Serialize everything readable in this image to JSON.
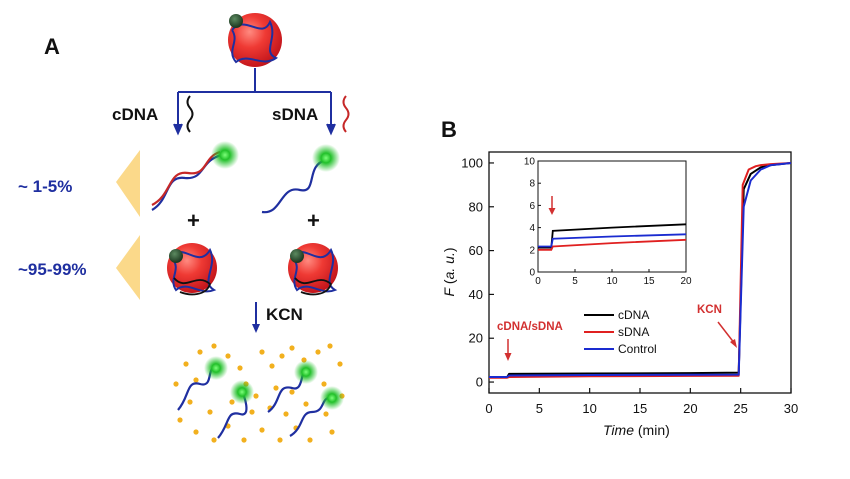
{
  "panel_a": {
    "letter": "A",
    "branch_left": "cDNA",
    "branch_right": "sDNA",
    "pct_top": "~ 1-5%",
    "pct_bottom": "~95-99%",
    "plus": "+",
    "kcn": "KCN",
    "colors": {
      "nanoparticle": "#e8242c",
      "dna_blue": "#1f2fa0",
      "dna_red": "#c62828",
      "fluor": "#22c02a",
      "quencher": "#2f5a34",
      "dots": "#f2b01e",
      "wedge": "#fbd98a"
    }
  },
  "panel_b": {
    "letter": "B",
    "annot_left": "cDNA/sDNA",
    "annot_right": "KCN",
    "legend": [
      "cDNA",
      "sDNA",
      "Control"
    ],
    "inset_x_ticks": [
      "0",
      "5",
      "10",
      "15",
      "20"
    ],
    "inset_y_ticks": [
      "0",
      "2",
      "4",
      "6",
      "8",
      "10"
    ]
  },
  "chart_data": {
    "type": "line",
    "xlabel": "Time (min)",
    "ylabel": "F (a. u.)",
    "xlim": [
      0,
      30
    ],
    "ylim": [
      -5,
      105
    ],
    "x_ticks": [
      "0",
      "5",
      "10",
      "15",
      "20",
      "25",
      "30"
    ],
    "y_ticks": [
      "0",
      "20",
      "40",
      "60",
      "80",
      "100"
    ],
    "legend_position": "bottom-left of inner area",
    "series": [
      {
        "name": "cDNA",
        "color": "#000000",
        "x": [
          0,
          1.8,
          2,
          10,
          20,
          24.8,
          25.3,
          26,
          27,
          28,
          30
        ],
        "y": [
          2.2,
          2.2,
          3.7,
          3.9,
          4.1,
          4.3,
          88,
          95,
          98,
          99,
          100
        ]
      },
      {
        "name": "sDNA",
        "color": "#e02020",
        "x": [
          0,
          1.8,
          2,
          10,
          20,
          24.8,
          25.2,
          25.8,
          26.5,
          27,
          28,
          30
        ],
        "y": [
          2.0,
          2.0,
          2.3,
          2.6,
          2.8,
          2.9,
          90,
          97,
          98.5,
          99,
          99.5,
          100
        ]
      },
      {
        "name": "Control",
        "color": "#1a2bd0",
        "x": [
          0,
          1.8,
          2,
          10,
          20,
          24.8,
          25.3,
          26,
          27,
          28,
          30
        ],
        "y": [
          2.3,
          2.3,
          3.0,
          3.2,
          3.3,
          3.4,
          80,
          92,
          97,
          99,
          100
        ]
      }
    ],
    "inset": {
      "xlim": [
        0,
        20
      ],
      "ylim": [
        0,
        10
      ],
      "series": [
        {
          "name": "cDNA",
          "x": [
            0,
            1.8,
            2,
            10,
            20
          ],
          "y": [
            2.2,
            2.2,
            3.7,
            4.0,
            4.3
          ]
        },
        {
          "name": "sDNA",
          "x": [
            0,
            1.8,
            2,
            10,
            20
          ],
          "y": [
            2.0,
            2.0,
            2.3,
            2.6,
            2.9
          ]
        },
        {
          "name": "Control",
          "x": [
            0,
            1.8,
            2,
            10,
            20
          ],
          "y": [
            2.3,
            2.3,
            3.0,
            3.2,
            3.4
          ]
        }
      ]
    }
  }
}
